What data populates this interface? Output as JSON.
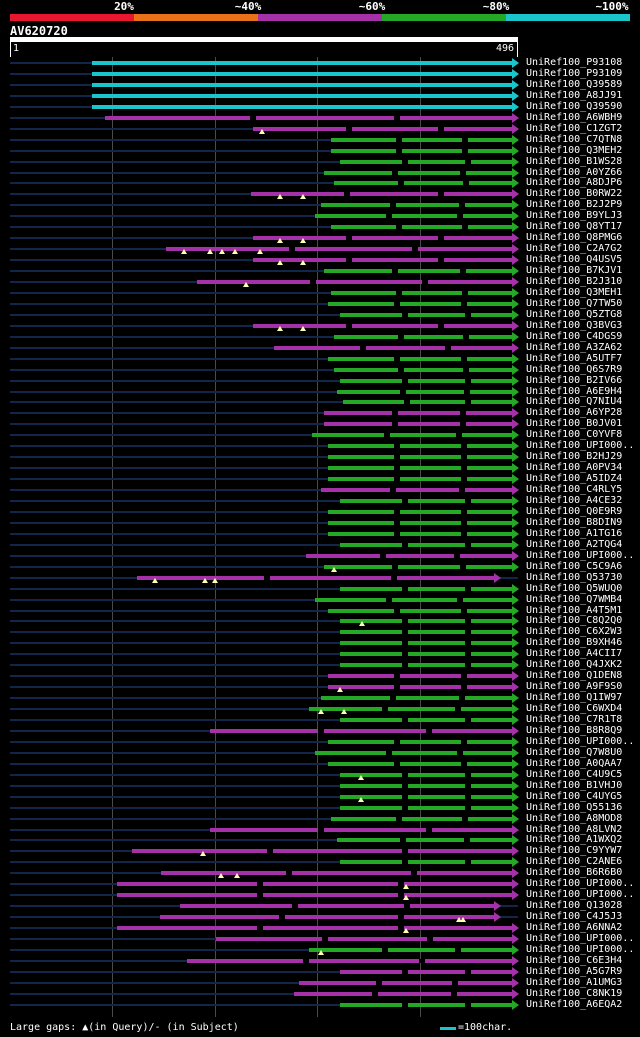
{
  "legend": {
    "segments": [
      {
        "label": "20%",
        "color": "#e8162e"
      },
      {
        "label": "~40%",
        "color": "#e8711a"
      },
      {
        "label": "~60%",
        "color": "#a531a8"
      },
      {
        "label": "~80%",
        "color": "#25a825"
      },
      {
        "label": "~100%",
        "color": "#1ac6cc"
      }
    ]
  },
  "query": {
    "name": "AV620720",
    "length": 496,
    "ruler_start": "1",
    "ruler_end": "496"
  },
  "hits": [
    {
      "label": "UniRef100_P93108",
      "start": 80,
      "end": 496,
      "color": "#1ac6cc",
      "gaps": []
    },
    {
      "label": "UniRef100_P93109",
      "start": 80,
      "end": 496,
      "color": "#1ac6cc",
      "gaps": []
    },
    {
      "label": "UniRef100_Q39589",
      "start": 80,
      "end": 496,
      "color": "#1ac6cc",
      "gaps": []
    },
    {
      "label": "UniRef100_A8JJ91",
      "start": 80,
      "end": 496,
      "color": "#1ac6cc",
      "gaps": []
    },
    {
      "label": "UniRef100_Q39590",
      "start": 80,
      "end": 496,
      "color": "#1ac6cc",
      "gaps": []
    },
    {
      "label": "UniRef100_A6WBH9",
      "start": 93,
      "end": 496,
      "color": "#a531a8",
      "gaps": []
    },
    {
      "label": "UniRef100_C1ZGT2",
      "start": 237,
      "end": 496,
      "color": "#a531a8",
      "gaps": [
        246
      ]
    },
    {
      "label": "UniRef100_C7QTN8",
      "start": 313,
      "end": 496,
      "color": "#25a825",
      "gaps": []
    },
    {
      "label": "UniRef100_Q3MEH2",
      "start": 313,
      "end": 496,
      "color": "#25a825",
      "gaps": []
    },
    {
      "label": "UniRef100_B1WS28",
      "start": 322,
      "end": 496,
      "color": "#25a825",
      "gaps": []
    },
    {
      "label": "UniRef100_A0YZ66",
      "start": 307,
      "end": 496,
      "color": "#25a825",
      "gaps": []
    },
    {
      "label": "UniRef100_A8DJP6",
      "start": 316,
      "end": 496,
      "color": "#25a825",
      "gaps": []
    },
    {
      "label": "UniRef100_B0RW22",
      "start": 235,
      "end": 496,
      "color": "#a531a8",
      "gaps": [
        264,
        286
      ]
    },
    {
      "label": "UniRef100_B2J2P9",
      "start": 304,
      "end": 496,
      "color": "#25a825",
      "gaps": []
    },
    {
      "label": "UniRef100_B9YLJ3",
      "start": 298,
      "end": 496,
      "color": "#25a825",
      "gaps": []
    },
    {
      "label": "UniRef100_Q8YT17",
      "start": 313,
      "end": 496,
      "color": "#25a825",
      "gaps": []
    },
    {
      "label": "UniRef100_Q8PMG6",
      "start": 237,
      "end": 496,
      "color": "#a531a8",
      "gaps": [
        264,
        286
      ]
    },
    {
      "label": "UniRef100_C2A7G2",
      "start": 152,
      "end": 496,
      "color": "#a531a8",
      "gaps": [
        170,
        195,
        207,
        220,
        244
      ]
    },
    {
      "label": "UniRef100_Q4USV5",
      "start": 237,
      "end": 496,
      "color": "#a531a8",
      "gaps": [
        264,
        286
      ]
    },
    {
      "label": "UniRef100_B7KJV1",
      "start": 307,
      "end": 496,
      "color": "#25a825",
      "gaps": []
    },
    {
      "label": "UniRef100_B2J310",
      "start": 183,
      "end": 496,
      "color": "#a531a8",
      "gaps": [
        230
      ]
    },
    {
      "label": "UniRef100_Q3MEH1",
      "start": 313,
      "end": 496,
      "color": "#25a825",
      "gaps": []
    },
    {
      "label": "UniRef100_Q7TW50",
      "start": 310,
      "end": 496,
      "color": "#25a825",
      "gaps": []
    },
    {
      "label": "UniRef100_Q5ZTG8",
      "start": 322,
      "end": 496,
      "color": "#25a825",
      "gaps": []
    },
    {
      "label": "UniRef100_Q3BVG3",
      "start": 237,
      "end": 496,
      "color": "#a531a8",
      "gaps": [
        264,
        286
      ]
    },
    {
      "label": "UniRef100_C4DGS9",
      "start": 316,
      "end": 496,
      "color": "#25a825",
      "gaps": []
    },
    {
      "label": "UniRef100_A3ZA62",
      "start": 258,
      "end": 496,
      "color": "#a531a8",
      "gaps": []
    },
    {
      "label": "UniRef100_A5UTF7",
      "start": 310,
      "end": 496,
      "color": "#25a825",
      "gaps": []
    },
    {
      "label": "UniRef100_Q6S7R9",
      "start": 316,
      "end": 496,
      "color": "#25a825",
      "gaps": []
    },
    {
      "label": "UniRef100_B2IV66",
      "start": 322,
      "end": 496,
      "color": "#25a825",
      "gaps": []
    },
    {
      "label": "UniRef100_A6E9H4",
      "start": 319,
      "end": 496,
      "color": "#25a825",
      "gaps": []
    },
    {
      "label": "UniRef100_Q7NIU4",
      "start": 325,
      "end": 496,
      "color": "#25a825",
      "gaps": []
    },
    {
      "label": "UniRef100_A6YP28",
      "start": 307,
      "end": 496,
      "color": "#a531a8",
      "gaps": []
    },
    {
      "label": "UniRef100_B0JV01",
      "start": 307,
      "end": 496,
      "color": "#a531a8",
      "gaps": []
    },
    {
      "label": "UniRef100_C0YVF8",
      "start": 295,
      "end": 496,
      "color": "#25a825",
      "gaps": []
    },
    {
      "label": "UniRef100_UPI000..",
      "start": 310,
      "end": 496,
      "color": "#25a825",
      "gaps": []
    },
    {
      "label": "UniRef100_B2HJ29",
      "start": 310,
      "end": 496,
      "color": "#25a825",
      "gaps": []
    },
    {
      "label": "UniRef100_A0PV34",
      "start": 310,
      "end": 496,
      "color": "#25a825",
      "gaps": []
    },
    {
      "label": "UniRef100_A5IDZ4",
      "start": 310,
      "end": 496,
      "color": "#25a825",
      "gaps": []
    },
    {
      "label": "UniRef100_C4RLY5",
      "start": 304,
      "end": 496,
      "color": "#a531a8",
      "gaps": []
    },
    {
      "label": "UniRef100_A4CE32",
      "start": 322,
      "end": 496,
      "color": "#25a825",
      "gaps": []
    },
    {
      "label": "UniRef100_Q0E9R9",
      "start": 310,
      "end": 496,
      "color": "#25a825",
      "gaps": []
    },
    {
      "label": "UniRef100_B8DIN9",
      "start": 310,
      "end": 496,
      "color": "#25a825",
      "gaps": []
    },
    {
      "label": "UniRef100_A1TG16",
      "start": 310,
      "end": 496,
      "color": "#25a825",
      "gaps": []
    },
    {
      "label": "UniRef100_A2TQG4",
      "start": 322,
      "end": 496,
      "color": "#25a825",
      "gaps": []
    },
    {
      "label": "UniRef100_UPI000..",
      "start": 289,
      "end": 496,
      "color": "#a531a8",
      "gaps": []
    },
    {
      "label": "UniRef100_C5C9A6",
      "start": 307,
      "end": 496,
      "color": "#25a825",
      "gaps": [
        316
      ]
    },
    {
      "label": "UniRef100_Q53730",
      "start": 124,
      "end": 478,
      "color": "#a531a8",
      "gaps": [
        142,
        190,
        200
      ]
    },
    {
      "label": "UniRef100_Q5WUQ0",
      "start": 322,
      "end": 496,
      "color": "#25a825",
      "gaps": []
    },
    {
      "label": "UniRef100_Q7WMB4",
      "start": 298,
      "end": 496,
      "color": "#25a825",
      "gaps": []
    },
    {
      "label": "UniRef100_A4T5M1",
      "start": 310,
      "end": 496,
      "color": "#25a825",
      "gaps": []
    },
    {
      "label": "UniRef100_C8Q2Q0",
      "start": 322,
      "end": 496,
      "color": "#25a825",
      "gaps": [
        344
      ]
    },
    {
      "label": "UniRef100_C6X2W3",
      "start": 322,
      "end": 496,
      "color": "#25a825",
      "gaps": []
    },
    {
      "label": "UniRef100_B9XH46",
      "start": 322,
      "end": 496,
      "color": "#25a825",
      "gaps": []
    },
    {
      "label": "UniRef100_A4CII7",
      "start": 322,
      "end": 496,
      "color": "#25a825",
      "gaps": []
    },
    {
      "label": "UniRef100_Q4JXK2",
      "start": 322,
      "end": 496,
      "color": "#25a825",
      "gaps": []
    },
    {
      "label": "UniRef100_Q1DEN8",
      "start": 310,
      "end": 496,
      "color": "#a531a8",
      "gaps": []
    },
    {
      "label": "UniRef100_A9F9S0",
      "start": 310,
      "end": 496,
      "color": "#a531a8",
      "gaps": [
        322
      ]
    },
    {
      "label": "UniRef100_Q1IW97",
      "start": 304,
      "end": 496,
      "color": "#25a825",
      "gaps": []
    },
    {
      "label": "UniRef100_C6WXD4",
      "start": 292,
      "end": 496,
      "color": "#25a825",
      "gaps": [
        304,
        326
      ]
    },
    {
      "label": "UniRef100_C7R1T8",
      "start": 322,
      "end": 496,
      "color": "#25a825",
      "gaps": []
    },
    {
      "label": "UniRef100_B8R8Q9",
      "start": 195,
      "end": 496,
      "color": "#a531a8",
      "gaps": []
    },
    {
      "label": "UniRef100_UPI000..",
      "start": 310,
      "end": 496,
      "color": "#25a825",
      "gaps": []
    },
    {
      "label": "UniRef100_Q7W8U0",
      "start": 298,
      "end": 496,
      "color": "#25a825",
      "gaps": []
    },
    {
      "label": "UniRef100_A0QAA7",
      "start": 310,
      "end": 496,
      "color": "#25a825",
      "gaps": []
    },
    {
      "label": "UniRef100_C4U9C5",
      "start": 322,
      "end": 496,
      "color": "#25a825",
      "gaps": [
        343
      ]
    },
    {
      "label": "UniRef100_B1VHJ0",
      "start": 322,
      "end": 496,
      "color": "#25a825",
      "gaps": []
    },
    {
      "label": "UniRef100_C4UYG5",
      "start": 322,
      "end": 496,
      "color": "#25a825",
      "gaps": [
        343
      ]
    },
    {
      "label": "UniRef100_Q55136",
      "start": 322,
      "end": 496,
      "color": "#25a825",
      "gaps": []
    },
    {
      "label": "UniRef100_A8MOD8",
      "start": 313,
      "end": 496,
      "color": "#25a825",
      "gaps": []
    },
    {
      "label": "UniRef100_A8LVN2",
      "start": 195,
      "end": 496,
      "color": "#a531a8",
      "gaps": []
    },
    {
      "label": "UniRef100_A1WXQ2",
      "start": 319,
      "end": 496,
      "color": "#25a825",
      "gaps": []
    },
    {
      "label": "UniRef100_C9YYW7",
      "start": 119,
      "end": 496,
      "color": "#a531a8",
      "gaps": [
        188
      ]
    },
    {
      "label": "UniRef100_C2ANE6",
      "start": 322,
      "end": 496,
      "color": "#25a825",
      "gaps": []
    },
    {
      "label": "UniRef100_B6R6B0",
      "start": 147,
      "end": 496,
      "color": "#a531a8",
      "gaps": [
        206,
        222
      ]
    },
    {
      "label": "UniRef100_UPI000..",
      "start": 104,
      "end": 496,
      "color": "#a531a8",
      "gaps": [
        387
      ]
    },
    {
      "label": "UniRef100_UPI000..",
      "start": 104,
      "end": 496,
      "color": "#a531a8",
      "gaps": [
        387
      ]
    },
    {
      "label": "UniRef100_Q13028",
      "start": 166,
      "end": 478,
      "color": "#a531a8",
      "gaps": []
    },
    {
      "label": "UniRef100_C4J5J3",
      "start": 146,
      "end": 478,
      "color": "#a531a8",
      "gaps": [
        438,
        442
      ]
    },
    {
      "label": "UniRef100_A6NNA2",
      "start": 104,
      "end": 496,
      "color": "#a531a8",
      "gaps": [
        387
      ]
    },
    {
      "label": "UniRef100_UPI000..",
      "start": 201,
      "end": 496,
      "color": "#a531a8",
      "gaps": []
    },
    {
      "label": "UniRef100_UPI000..",
      "start": 292,
      "end": 496,
      "color": "#25a825",
      "gaps": [
        304
      ]
    },
    {
      "label": "UniRef100_C6E3H4",
      "start": 173,
      "end": 496,
      "color": "#a531a8",
      "gaps": []
    },
    {
      "label": "UniRef100_A5G7R9",
      "start": 322,
      "end": 496,
      "color": "#a531a8",
      "gaps": []
    },
    {
      "label": "UniRef100_A1UMG3",
      "start": 282,
      "end": 496,
      "color": "#a531a8",
      "gaps": []
    },
    {
      "label": "UniRef100_C8NK19",
      "start": 277,
      "end": 496,
      "color": "#a531a8",
      "gaps": []
    },
    {
      "label": "UniRef100_A6EQA2",
      "start": 322,
      "end": 496,
      "color": "#25a825",
      "gaps": []
    }
  ],
  "footer": {
    "note": "Large gaps: ▲(in Query)/- (in Subject)",
    "scale_text": "=100char.",
    "scale_color": "#1ac6cc"
  }
}
